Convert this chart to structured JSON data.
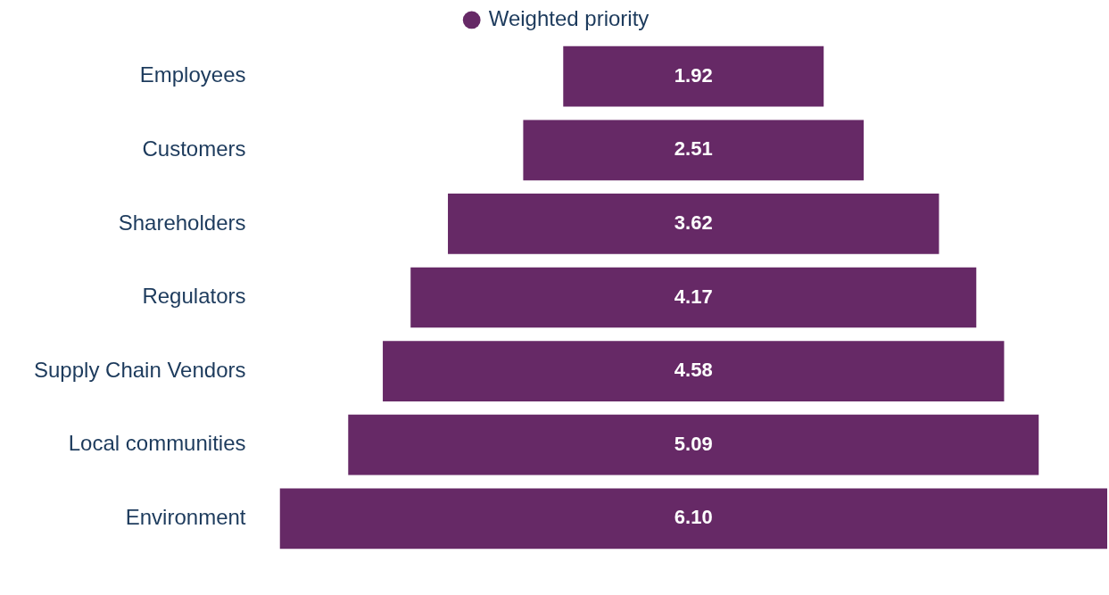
{
  "chart_data": {
    "type": "other",
    "categories": [
      "Employees",
      "Customers",
      "Shareholders",
      "Regulators",
      "Supply Chain Vendors",
      "Local communities",
      "Environment"
    ],
    "series": [
      {
        "name": "Weighted priority",
        "color": "#662966",
        "values": [
          1.92,
          2.51,
          3.62,
          4.17,
          4.58,
          5.09,
          6.1
        ],
        "value_labels": [
          "1.92",
          "2.51",
          "3.62",
          "4.17",
          "4.58",
          "5.09",
          "6.10"
        ]
      }
    ],
    "legend": "top"
  }
}
